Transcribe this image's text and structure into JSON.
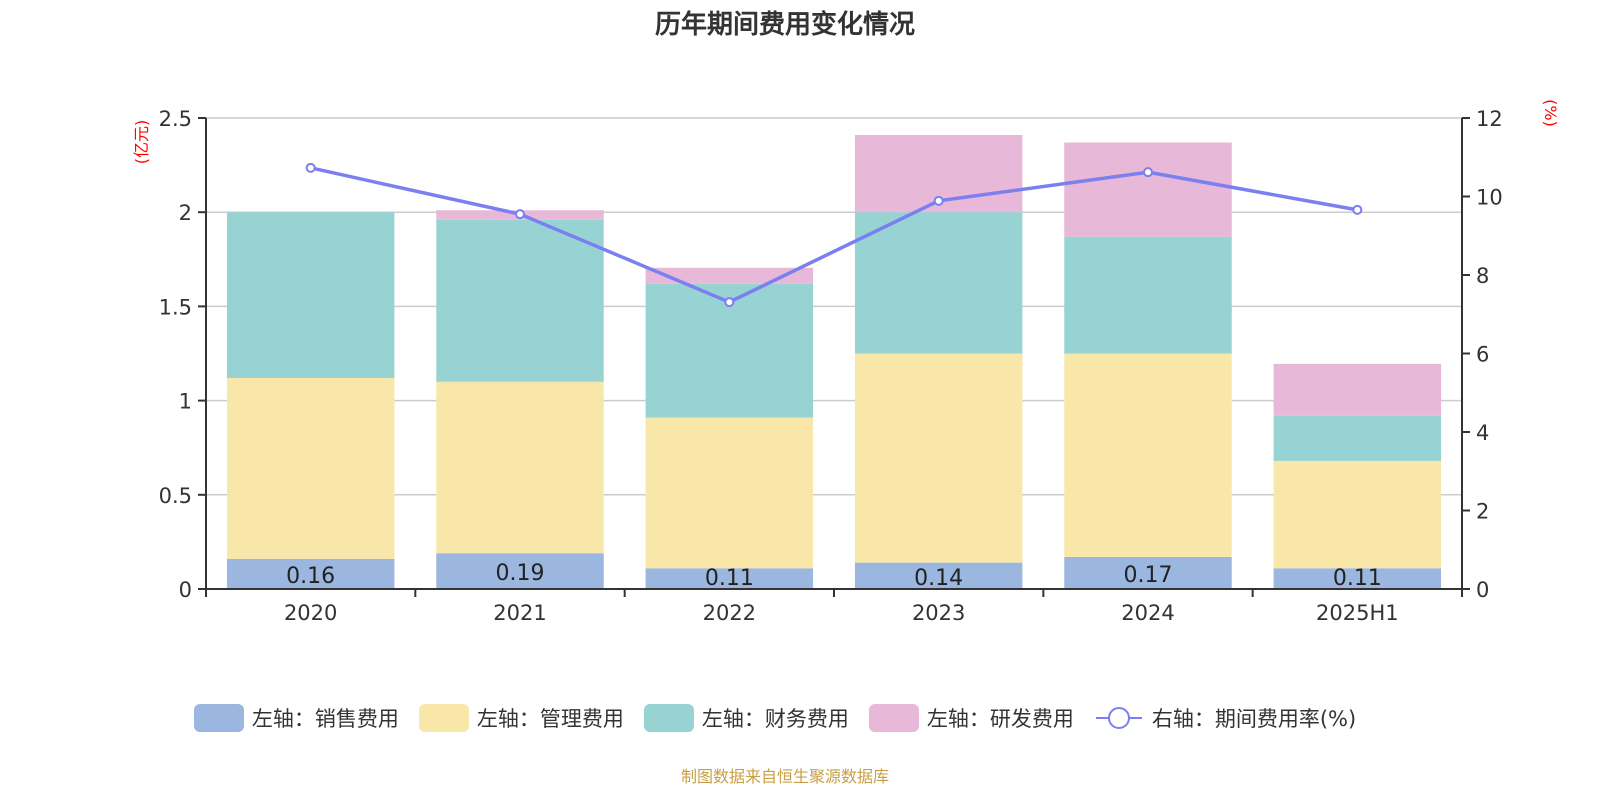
{
  "title": "历年期间费用变化情况",
  "footer": "制图数据来自恒生聚源数据库",
  "chart_data": {
    "type": "bar",
    "stacked": true,
    "title": "历年期间费用变化情况",
    "categories": [
      "2020",
      "2021",
      "2022",
      "2023",
      "2024",
      "2025H1"
    ],
    "left_axis": {
      "label": "(亿元)",
      "range": [
        0,
        2.5
      ],
      "ticks": [
        "0",
        "0.5",
        "1",
        "1.5",
        "2",
        "2.5"
      ],
      "tick_values": [
        0,
        0.5,
        1,
        1.5,
        2,
        2.5
      ]
    },
    "right_axis": {
      "label": "(%)",
      "range": [
        0,
        12
      ],
      "ticks": [
        "0",
        "2",
        "4",
        "6",
        "8",
        "10",
        "12"
      ],
      "tick_values": [
        0,
        2,
        4,
        6,
        8,
        10,
        12
      ]
    },
    "grid": true,
    "legend_position": "bottom",
    "series": [
      {
        "name": "左轴：销售费用",
        "type": "bar",
        "axis": "left",
        "color": "#9bb7e0",
        "values": [
          0.16,
          0.19,
          0.11,
          0.14,
          0.17,
          0.11
        ],
        "show_labels": true
      },
      {
        "name": "左轴：管理费用",
        "type": "bar",
        "axis": "left",
        "color": "#f8e7a9",
        "values": [
          0.96,
          0.91,
          0.8,
          1.11,
          1.08,
          0.57
        ]
      },
      {
        "name": "左轴：财务费用",
        "type": "bar",
        "axis": "left",
        "color": "#98d3d4",
        "values": [
          0.88,
          0.86,
          0.71,
          0.75,
          0.62,
          0.24
        ]
      },
      {
        "name": "左轴：研发费用",
        "type": "bar",
        "axis": "left",
        "color": "#e7b8d7",
        "values": [
          0.0,
          0.05,
          0.085,
          0.41,
          0.5,
          0.275
        ]
      },
      {
        "name": "右轴：期间费用率(%)",
        "type": "line",
        "axis": "right",
        "color": "#7b7ff0",
        "values": [
          10.73,
          9.55,
          7.31,
          9.89,
          10.62,
          9.66
        ]
      }
    ],
    "data_labels": [
      "0.16",
      "0.19",
      "0.11",
      "0.14",
      "0.17",
      "0.11"
    ]
  }
}
